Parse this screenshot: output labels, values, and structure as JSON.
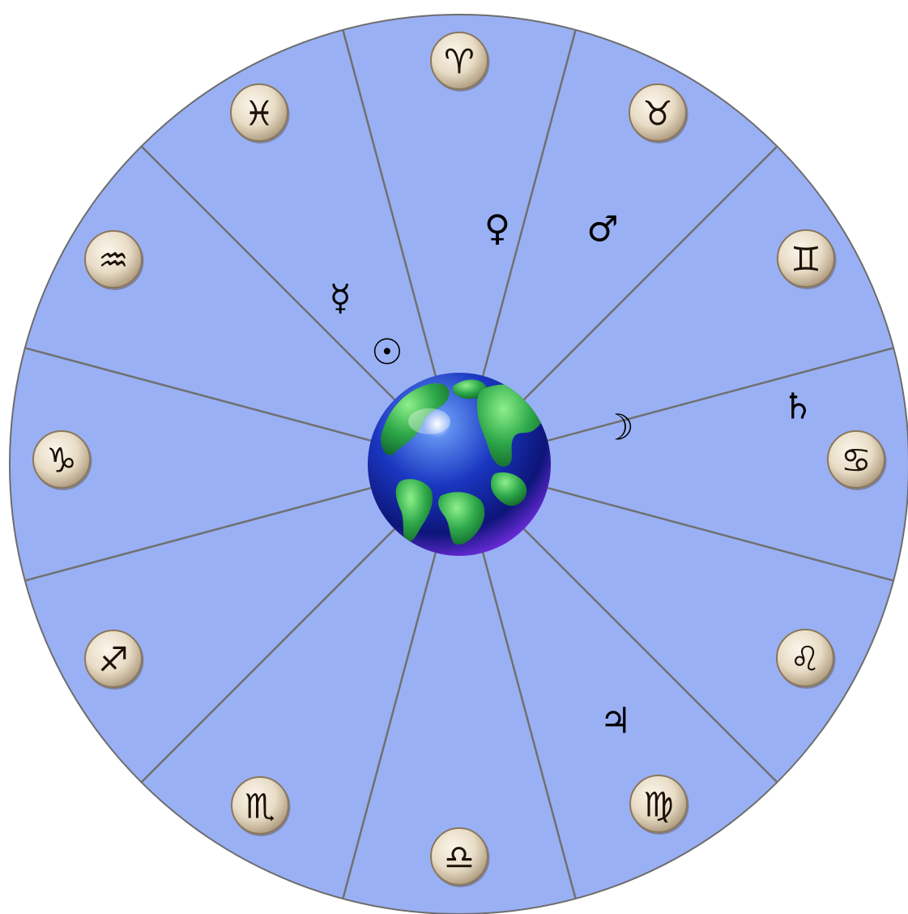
{
  "colors": {
    "wheel_fill": "#9ab0f4",
    "divider": "#707070",
    "medallion_light": "#f6efe2",
    "medallion_dark": "#b49f83",
    "ocean": "#1a30b0",
    "land": "#2fa84a"
  },
  "center": {
    "icon": "earth-globe-icon"
  },
  "signs": [
    {
      "name": "aries",
      "glyph": "♈︎"
    },
    {
      "name": "taurus",
      "glyph": "♉︎"
    },
    {
      "name": "gemini",
      "glyph": "♊︎"
    },
    {
      "name": "cancer",
      "glyph": "♋︎"
    },
    {
      "name": "leo",
      "glyph": "♌︎"
    },
    {
      "name": "virgo",
      "glyph": "♍︎"
    },
    {
      "name": "libra",
      "glyph": "♎︎"
    },
    {
      "name": "scorpio",
      "glyph": "♏︎"
    },
    {
      "name": "sagittarius",
      "glyph": "♐︎"
    },
    {
      "name": "capricorn",
      "glyph": "♑︎"
    },
    {
      "name": "aquarius",
      "glyph": "♒︎"
    },
    {
      "name": "pisces",
      "glyph": "♓︎"
    }
  ],
  "planets": [
    {
      "name": "venus",
      "glyph": "♀"
    },
    {
      "name": "mars",
      "glyph": "♂"
    },
    {
      "name": "mercury",
      "glyph": "☿"
    },
    {
      "name": "sun",
      "glyph": "☉"
    },
    {
      "name": "moon",
      "glyph": "☽"
    },
    {
      "name": "saturn",
      "glyph": "♄"
    },
    {
      "name": "jupiter",
      "glyph": "♃"
    }
  ]
}
